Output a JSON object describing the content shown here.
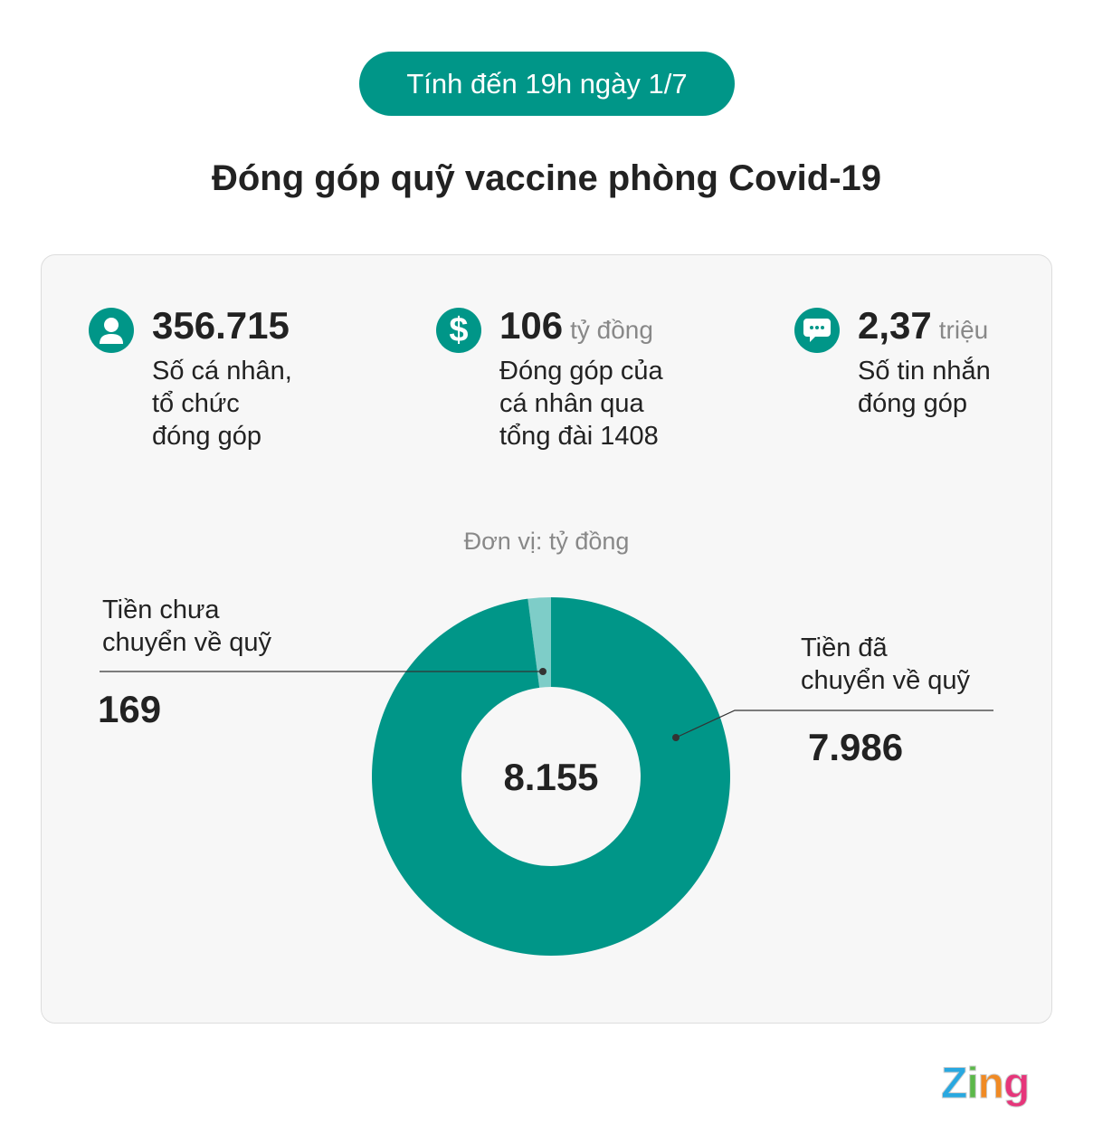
{
  "header": {
    "date_pill": "Tính đến 19h ngày 1/7",
    "title": "Đóng góp quỹ vaccine phòng Covid-19"
  },
  "stats": [
    {
      "icon": "person-icon",
      "value": "356.715",
      "unit": "",
      "desc": [
        "Số cá nhân,",
        "tổ chức",
        "đóng góp"
      ]
    },
    {
      "icon": "dollar-icon",
      "value": "106",
      "unit": "tỷ đồng",
      "desc": [
        "Đóng góp của",
        "cá nhân qua",
        "tổng đài 1408"
      ]
    },
    {
      "icon": "chat-icon",
      "value": "2,37",
      "unit": "triệu",
      "desc": [
        "Số tin nhắn",
        "đóng góp"
      ]
    }
  ],
  "chart_data": {
    "type": "pie",
    "donut": true,
    "unit_label": "Đơn vị: tỷ đồng",
    "total": "8.155",
    "slices": [
      {
        "label": [
          "Tiền chưa",
          "chuyển về quỹ"
        ],
        "value": 169,
        "display": "169",
        "color": "#7ecdc8"
      },
      {
        "label": [
          "Tiền đã",
          "chuyển về quỹ"
        ],
        "value": 7986,
        "display": "7.986",
        "color": "#009688"
      }
    ]
  },
  "colors": {
    "accent": "#009688",
    "light": "#7ecdc8"
  },
  "logo": "Zing"
}
